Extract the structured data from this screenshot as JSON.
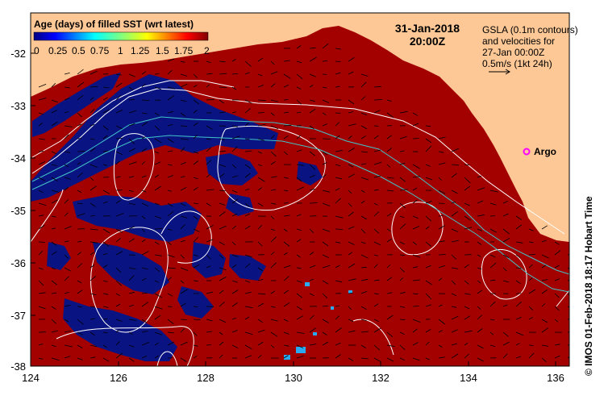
{
  "title": {
    "date": "31-Jan-2018",
    "time": "20:00Z"
  },
  "colorbar": {
    "title": "Age (days) of filled SST (wrt latest)",
    "ticks": [
      "0",
      "0.25",
      "0.5",
      "0.75",
      "1",
      "1.25",
      "1.5",
      "1.75",
      "2"
    ],
    "range": [
      0,
      2
    ]
  },
  "legend": {
    "text": "GSLA (0.1m contours)\nand velocities for\n27-Jan 00:00Z\n0.5m/s (1kt 24h)"
  },
  "argo": {
    "label": "Argo",
    "lon": 135.5,
    "lat": -33.9
  },
  "axes": {
    "x_ticks": [
      "124",
      "126",
      "128",
      "130",
      "132",
      "134",
      "136"
    ],
    "y_ticks": [
      "-32",
      "-33",
      "-34",
      "-35",
      "-36",
      "-37",
      "-38"
    ]
  },
  "credit": "© IMOS 01-Feb-2018 18:17 Hobart Time",
  "colors": {
    "land": "#fdc896",
    "sst_old": "#a30000",
    "sst_fresh": "#0a1382",
    "sst_mid": "#2aaaf2",
    "contour": "#ffffff",
    "current": "#40c4c8",
    "argo": "#ff00ff"
  }
}
